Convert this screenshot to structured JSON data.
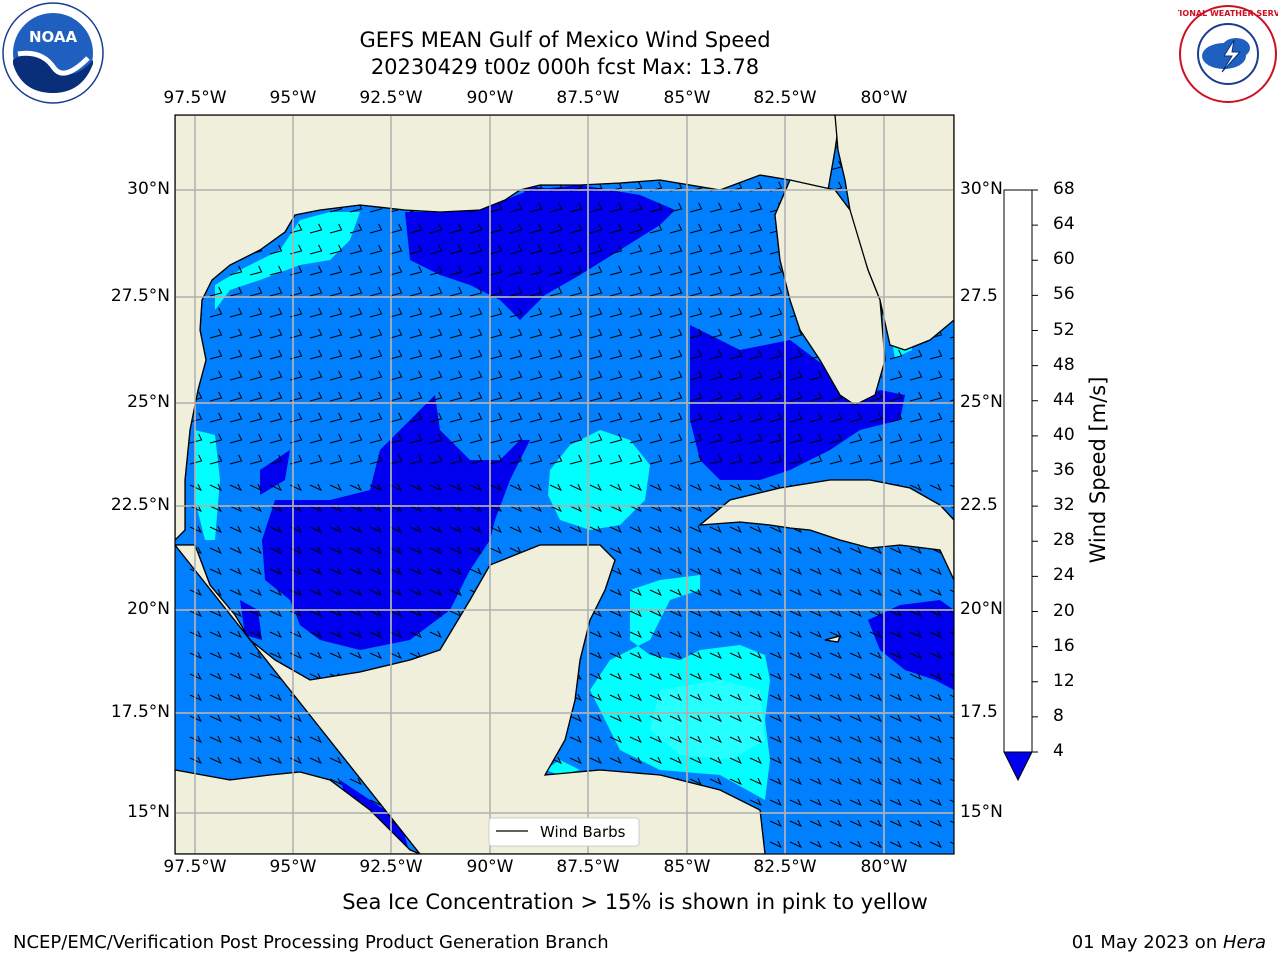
{
  "title": {
    "line1": "GEFS MEAN Gulf of Mexico Wind Speed",
    "line2": "20230429 t00z 000h fcst   Max: 13.78"
  },
  "map": {
    "lon_ticks": [
      "97.5°W",
      "95°W",
      "92.5°W",
      "90°W",
      "87.5°W",
      "85°W",
      "82.5°W",
      "80°W"
    ],
    "lat_ticks_left": [
      "30°N",
      "27.5°N",
      "25°N",
      "22.5°N",
      "20°N",
      "17.5°N",
      "15°N"
    ],
    "lat_ticks_right": [
      "30°N",
      "27.5",
      "25°N",
      "22.5",
      "20°N",
      "17.5",
      "15°N"
    ],
    "land_color": "#efefdc",
    "gridline_color": "#b0b0b0",
    "legend_label": "Wind Barbs"
  },
  "colorbar": {
    "label": "Wind Speed [m/s]",
    "levels": [
      "4",
      "8",
      "12",
      "16",
      "20",
      "24",
      "28",
      "32",
      "36",
      "40",
      "44",
      "48",
      "52",
      "56",
      "60",
      "64",
      "68"
    ],
    "colors": [
      "#0080ff",
      "#00ffff",
      "#40ffff",
      "#a0ffff",
      "#50ff80",
      "#00ee00",
      "#55dd00",
      "#aaee00",
      "#ccff00",
      "#eeff00",
      "#ffff00",
      "#ffdd00",
      "#ffb000",
      "#ff8c00",
      "#ff6000",
      "#ff3000",
      "#ff0000"
    ],
    "under_color": "#0000ee"
  },
  "logos": {
    "left": "noaa-logo",
    "right": "nws-logo",
    "left_text": "NOAA",
    "right_ring_text": "NATIONAL WEATHER SERVICE"
  },
  "note": "Sea Ice Concentration > 15% is shown in pink to yellow",
  "footer": {
    "left": "NCEP/EMC/Verification Post Processing Product Generation Branch",
    "date": "01 May 2023 on ",
    "machine": "Hera"
  }
}
